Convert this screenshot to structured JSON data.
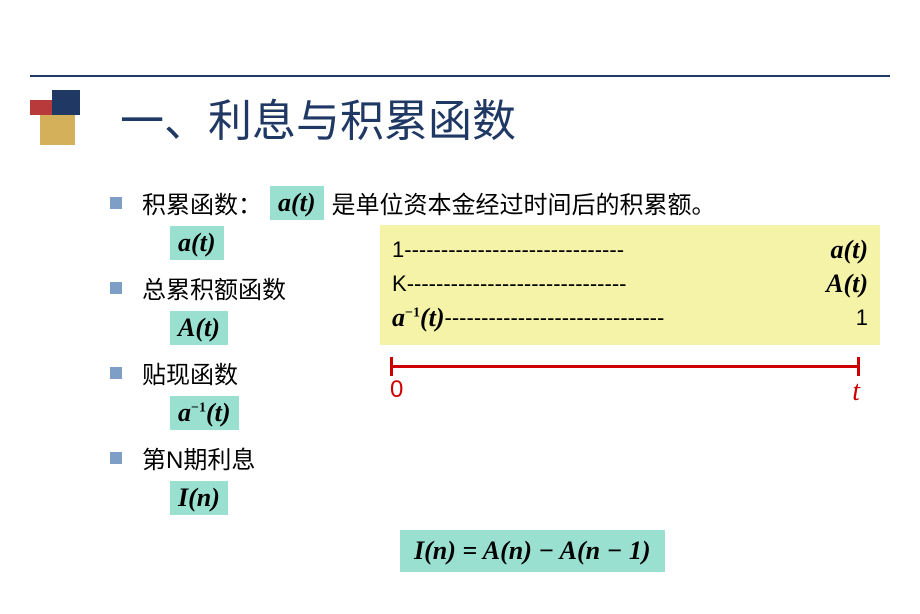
{
  "title": "一、利息与积累函数",
  "bullets": {
    "b1_left": "积累函数：",
    "b1_formula": "a(t)",
    "b1_right": "是单位资本金经过时间后的积累额。",
    "f1": "a(t)",
    "b2": "总累积额函数",
    "f2": "A(t)",
    "b3": "贴现函数",
    "f3_base": "a",
    "f3_sup": "−1",
    "f3_tail": "(t)",
    "b4": "第N期利息",
    "f4": "I(n)"
  },
  "diagram": {
    "row1_l": "1",
    "row1_r": "a(t)",
    "row2_l": "K",
    "row2_r": "A(t)",
    "row3_l_base": "a",
    "row3_l_sup": "−1",
    "row3_l_tail": "(t)",
    "row3_r": "1",
    "dash": "------------------------------",
    "tl_left": "0",
    "tl_right": "t"
  },
  "equation": "I(n) = A(n) − A(n − 1)",
  "colors": {
    "title": "#203864",
    "highlight": "#99e0d0",
    "yellow": "#f5f3a8",
    "red": "#cc0000",
    "bullet": "#7d9fc7"
  }
}
